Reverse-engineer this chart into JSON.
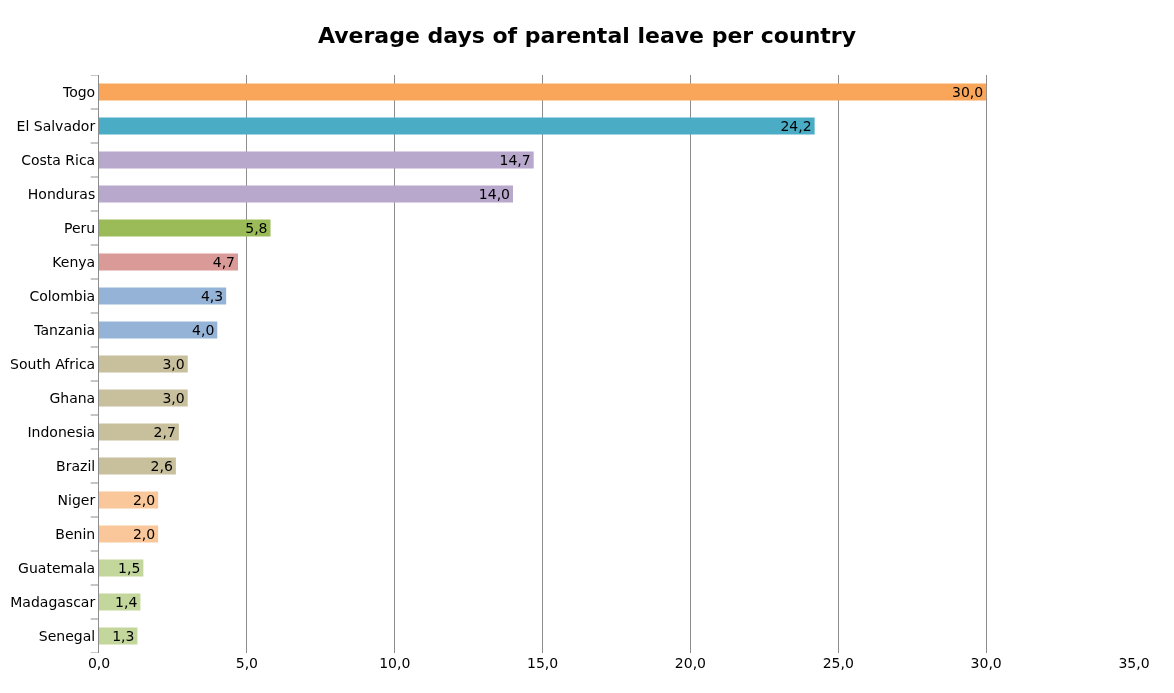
{
  "chart_data": {
    "type": "bar",
    "orientation": "horizontal",
    "title": "Average days of parental leave per country",
    "categories": [
      "Togo",
      "El Salvador",
      "Costa Rica",
      "Honduras",
      "Peru",
      "Kenya",
      "Colombia",
      "Tanzania",
      "South Africa",
      "Ghana",
      "Indonesia",
      "Brazil",
      "Niger",
      "Benin",
      "Guatemala",
      "Madagascar",
      "Senegal"
    ],
    "values": [
      30.0,
      24.2,
      14.7,
      14.0,
      5.8,
      4.7,
      4.3,
      4.0,
      3.0,
      3.0,
      2.7,
      2.6,
      2.0,
      2.0,
      1.5,
      1.4,
      1.3
    ],
    "value_labels": [
      "30,0",
      "24,2",
      "14,7",
      "14,0",
      "5,8",
      "4,7",
      "4,3",
      "4,0",
      "3,0",
      "3,0",
      "2,7",
      "2,6",
      "2,0",
      "2,0",
      "1,5",
      "1,4",
      "1,3"
    ],
    "colors": [
      "#f9a65a",
      "#4bacc6",
      "#b7a8cc",
      "#b7a8cc",
      "#9bbb59",
      "#d99a98",
      "#95b3d7",
      "#95b3d7",
      "#c8bf9d",
      "#c8bf9d",
      "#c8bf9d",
      "#c8bf9d",
      "#fac79a",
      "#fac79a",
      "#c3d69b",
      "#c3d69b",
      "#c3d69b"
    ],
    "xlim": [
      0,
      35
    ],
    "xticks": [
      {
        "value": 0,
        "label": "0,0"
      },
      {
        "value": 5,
        "label": "5,0"
      },
      {
        "value": 10,
        "label": "10,0"
      },
      {
        "value": 15,
        "label": "15,0"
      },
      {
        "value": 20,
        "label": "20,0"
      },
      {
        "value": 25,
        "label": "25,0"
      },
      {
        "value": 30,
        "label": "30,0"
      },
      {
        "value": 35,
        "label": "35,0"
      }
    ],
    "grid": "x"
  }
}
